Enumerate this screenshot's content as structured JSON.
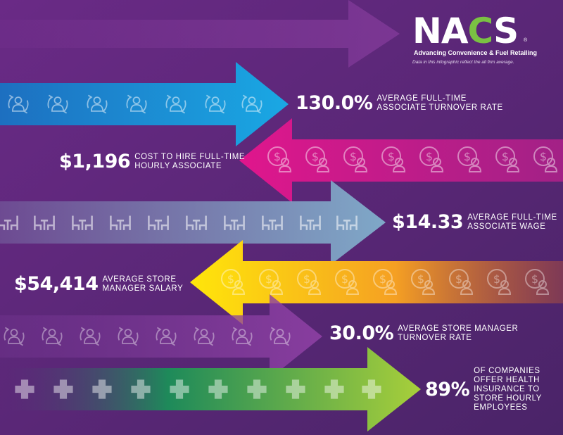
{
  "logo": {
    "name": "NACS",
    "tagline": "Advancing Convenience & Fuel Retailing",
    "note": "Data in this infographic reflect the all firm average."
  },
  "stats": [
    {
      "value": "130.0%",
      "label": "AVERAGE FULL-TIME\nASSOCIATE TURNOVER RATE"
    },
    {
      "value": "$1,196",
      "label": "COST TO HIRE FULL-TIME\nHOURLY ASSOCIATE"
    },
    {
      "value": "$14.33",
      "label": "AVERAGE FULL-TIME\nASSOCIATE WAGE"
    },
    {
      "value": "$54,414",
      "label": "AVERAGE STORE\nMANAGER SALARY"
    },
    {
      "value": "30.0%",
      "label": "AVERAGE STORE MANAGER\nTURNOVER RATE"
    },
    {
      "value": "89%",
      "label": "OF COMPANIES\nOFFER HEALTH\nINSURANCE TO\nSTORE HOURLY\nEMPLOYEES"
    }
  ],
  "colors": {
    "background": "#5a2a78",
    "blue": "#1aa3e0",
    "magenta": "#e0168c",
    "slate_blue": "#7fa8c8",
    "yellow": "#ffe10a",
    "orange": "#f5a023",
    "purple": "#8a3ea0",
    "green": "#a4cc3c",
    "nacs_green": "#7ac143"
  },
  "icons": [
    "person-turnover-icon",
    "dollar-person-icon",
    "workstation-icon",
    "health-cross-icon"
  ]
}
